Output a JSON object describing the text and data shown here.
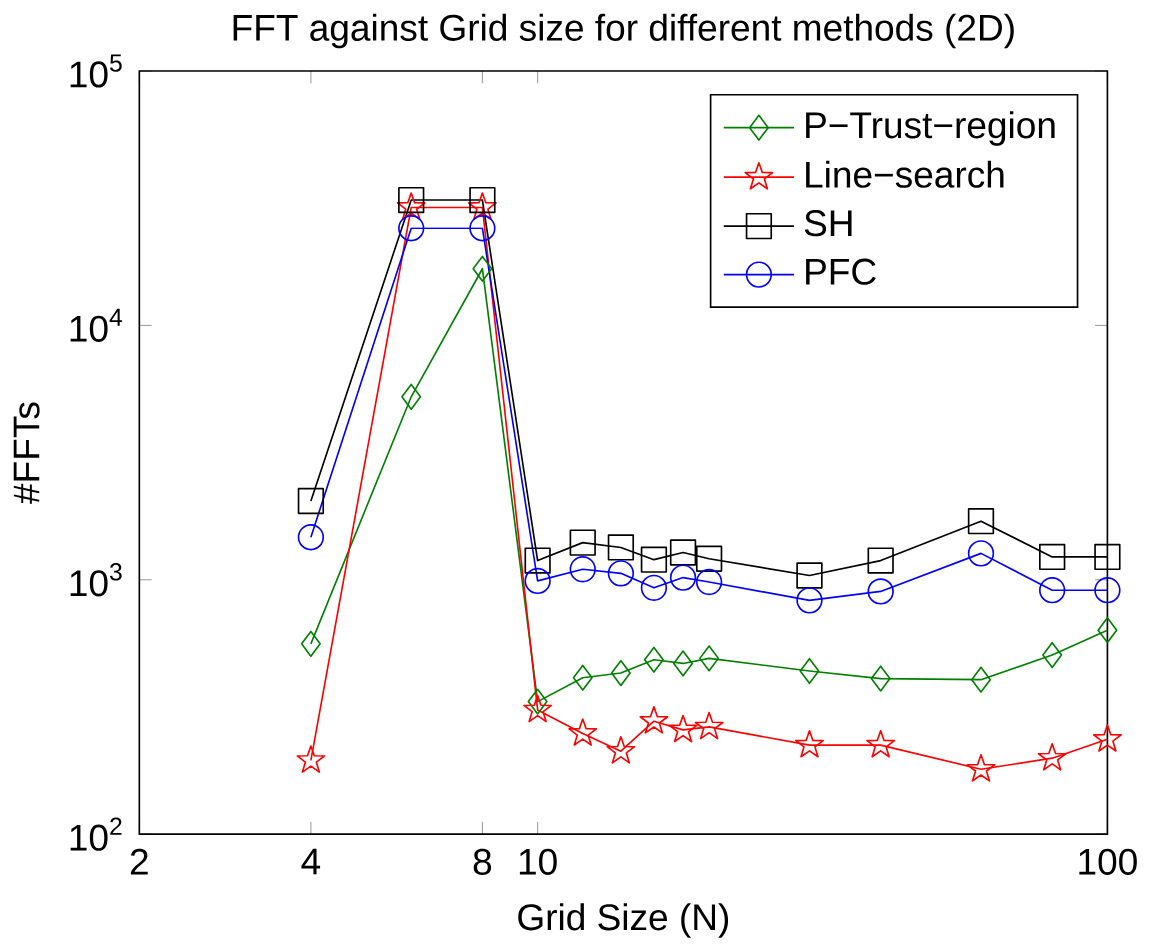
{
  "chart_data": {
    "type": "line",
    "title": "FFT against Grid size for different methods (2D)",
    "xlabel": "Grid Size (N)",
    "ylabel": "#FFTs",
    "log": "xy",
    "xlim": [
      2,
      100
    ],
    "xticks": [
      2,
      4,
      8,
      10,
      100
    ],
    "ylim": [
      100,
      100000
    ],
    "yticks": [
      {
        "value": 100,
        "label": "10$^{2}$"
      },
      {
        "value": 1000,
        "label": "10$^{3}$"
      },
      {
        "value": 10000,
        "label": "10$^{4}$"
      },
      {
        "value": 100000,
        "label": "10$^{5}$"
      }
    ],
    "x": [
      4,
      6,
      8,
      10,
      12,
      14,
      16,
      18,
      20,
      30,
      40,
      60,
      80,
      100
    ],
    "legend": "top right",
    "grid": false,
    "series": [
      {
        "name": "P−Trust−region",
        "color": "#008000",
        "marker": "diamond",
        "values": [
          560,
          5240,
          16700,
          332,
          412,
          430,
          485,
          469,
          491,
          438,
          409,
          405,
          506,
          634
        ]
      },
      {
        "name": "Line−search",
        "color": "#ff0000",
        "marker": "star",
        "values": [
          195,
          29100,
          29100,
          308,
          249,
          212,
          278,
          257,
          264,
          224,
          224,
          180,
          199,
          236
        ]
      },
      {
        "name": "SH",
        "color": "#000000",
        "marker": "square",
        "values": [
          2040,
          31100,
          31100,
          1190,
          1400,
          1340,
          1200,
          1280,
          1210,
          1040,
          1190,
          1700,
          1230,
          1230
        ]
      },
      {
        "name": "PFC",
        "color": "#0000ff",
        "marker": "circle",
        "values": [
          1470,
          24100,
          24100,
          990,
          1100,
          1060,
          930,
          1020,
          980,
          830,
          900,
          1270,
          910,
          910
        ]
      }
    ]
  }
}
